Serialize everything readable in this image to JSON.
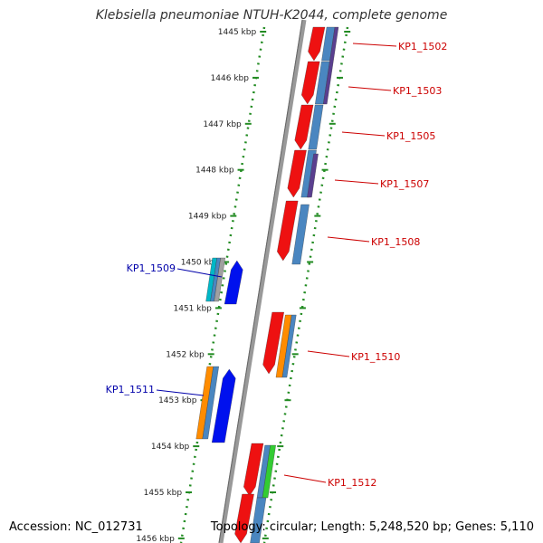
{
  "title": "Klebsiella pneumoniae NTUH-K2044, complete genome",
  "footer": {
    "accession": "Accession: NC_012731",
    "summary": "Topology: circular; Length: 5,248,520 bp; Genes: 5,110"
  },
  "colors": {
    "ruler_ticks": "#228b22",
    "backbone": "#888888",
    "forward_gene_label": "#cc0000",
    "reverse_gene_label": "#0000aa",
    "red_gene": "#ee1111",
    "blue_gene": "#0011ee",
    "cds_blue": "#4a86c0",
    "cds_purple": "#5a3f8f",
    "cds_orange": "#ff8c00",
    "cds_green": "#33cc33",
    "cds_cyan": "#00b7c7"
  },
  "ruler": {
    "ticks": [
      "1445 kbp",
      "1446 kbp",
      "1447 kbp",
      "1448 kbp",
      "1449 kbp",
      "1450 kbp",
      "1451 kbp",
      "1452 kbp",
      "1453 kbp",
      "1454 kbp",
      "1455 kbp",
      "1456 kbp"
    ]
  },
  "gene_labels": {
    "forward": [
      "KP1_1502",
      "KP1_1503",
      "KP1_1505",
      "KP1_1507",
      "KP1_1508",
      "KP1_1510",
      "KP1_1512"
    ],
    "reverse": [
      "KP1_1509",
      "KP1_1511"
    ]
  }
}
